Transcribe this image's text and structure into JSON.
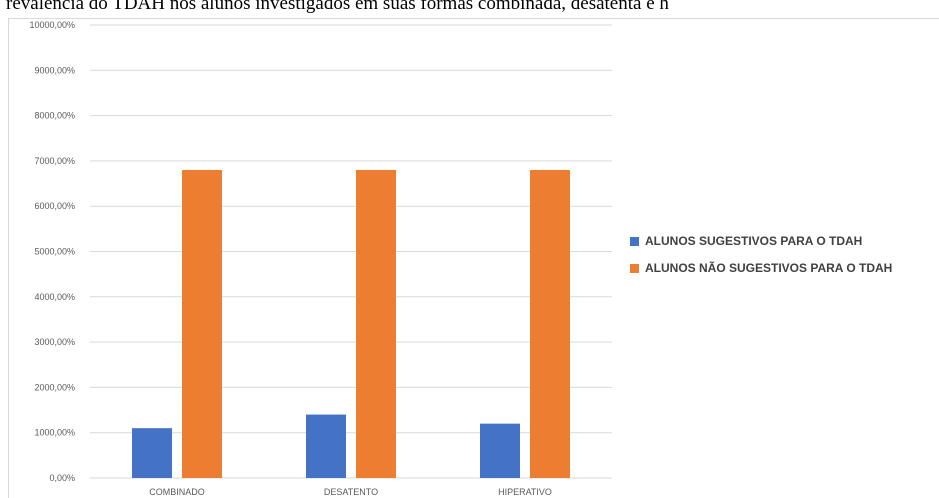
{
  "chart_data": {
    "type": "bar",
    "title": "revalência do TDAH nos alunos investigados em suas formas combinada, desatenta e h",
    "categories": [
      "COMBINADO",
      "DESATENTO",
      "HIPERATIVO"
    ],
    "series": [
      {
        "name": "ALUNOS SUGESTIVOS PARA O TDAH",
        "values": [
          1100,
          1400,
          1200
        ],
        "color": "#4472c4"
      },
      {
        "name": "ALUNOS NÃO SUGESTIVOS PARA O TDAH",
        "values": [
          6800,
          6800,
          6800
        ],
        "color": "#ed7d31"
      }
    ],
    "yticks": [
      "0,00%",
      "1000,00%",
      "2000,00%",
      "3000,00%",
      "4000,00%",
      "5000,00%",
      "6000,00%",
      "7000,00%",
      "8000,00%",
      "9000,00%",
      "10000,00%"
    ],
    "ylim": [
      0,
      10000
    ],
    "grid": true,
    "legend_position": "right",
    "gridline_color": "#d9d9d9"
  }
}
